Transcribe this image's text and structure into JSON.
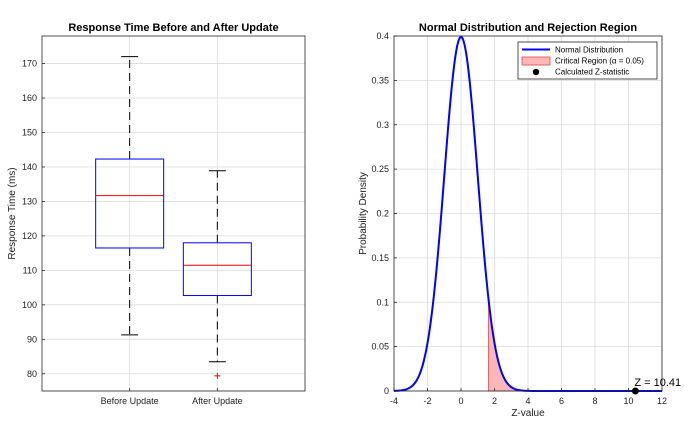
{
  "chart_data": [
    {
      "type": "box",
      "title": "Response Time Before and After Update",
      "xlabel": "",
      "ylabel": "Response Time (ms)",
      "ylim": [
        75,
        178
      ],
      "yticks": [
        80,
        90,
        100,
        110,
        120,
        130,
        140,
        150,
        160,
        170
      ],
      "grid": true,
      "categories": [
        "Before Update",
        "After Update"
      ],
      "boxes": [
        {
          "min": 91.3,
          "q1": 116.5,
          "median": 131.7,
          "q3": 142.3,
          "max": 172.0,
          "outliers": []
        },
        {
          "min": 83.5,
          "q1": 102.7,
          "median": 111.5,
          "q3": 118.0,
          "max": 138.9,
          "outliers": [
            79.4
          ]
        }
      ],
      "colors": {
        "box": "#0000ff",
        "median": "#ff0000",
        "whisker": "#000000",
        "outlier": "#ff0000"
      }
    },
    {
      "type": "line",
      "title": "Normal Distribution and Rejection Region",
      "xlabel": "Z-value",
      "ylabel": "Probability Density",
      "xlim": [
        -4,
        12
      ],
      "ylim": [
        0,
        0.4
      ],
      "xticks": [
        -4,
        -2,
        0,
        2,
        4,
        6,
        8,
        10,
        12
      ],
      "yticks": [
        0,
        0.05,
        0.1,
        0.15,
        0.2,
        0.25,
        0.3,
        0.35,
        0.4
      ],
      "grid": true,
      "critical_z": 1.645,
      "z_statistic": 10.41,
      "annotation": "Z = 10.41",
      "legend": {
        "position": "top-right",
        "entries": [
          "Normal Distribution",
          "Critical Region (α = 0.05)",
          "Calculated Z-statistic"
        ]
      },
      "colors": {
        "curve": "#0000ff",
        "region": "#ffb6b6",
        "region_edge": "#d94a4a",
        "point": "#000000"
      }
    }
  ]
}
